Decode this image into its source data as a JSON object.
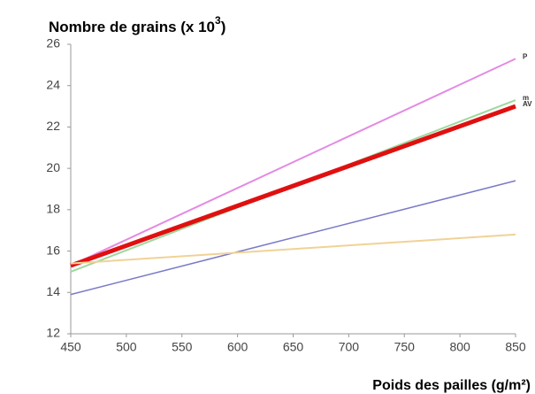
{
  "chart_data": {
    "type": "line",
    "title": "Nombre de grains (x 10",
    "title_superscript": "3",
    "title_end": ")",
    "x_label": "Poids des pailles (g/m²)",
    "x": [
      450,
      850
    ],
    "series": [
      {
        "name": "P",
        "color": "#e48ae4",
        "width": 2,
        "values": [
          15.3,
          25.3
        ]
      },
      {
        "name": "m",
        "color": "#9ed89e",
        "width": 2,
        "values": [
          15.0,
          23.3
        ]
      },
      {
        "name": "AV",
        "color": "#e01010",
        "width": 5,
        "values": [
          15.3,
          23.0
        ]
      },
      {
        "color": "#7a7ac8",
        "width": 1.5,
        "values": [
          13.9,
          19.4
        ]
      },
      {
        "color": "#f0d296",
        "width": 2,
        "values": [
          15.4,
          16.8
        ]
      }
    ],
    "xlim": [
      450,
      850
    ],
    "xticks": [
      450,
      500,
      550,
      600,
      650,
      700,
      750,
      800,
      850
    ],
    "ylim": [
      12,
      26
    ],
    "yticks": [
      12,
      14,
      16,
      18,
      20,
      22,
      24,
      26
    ],
    "grid": false
  }
}
